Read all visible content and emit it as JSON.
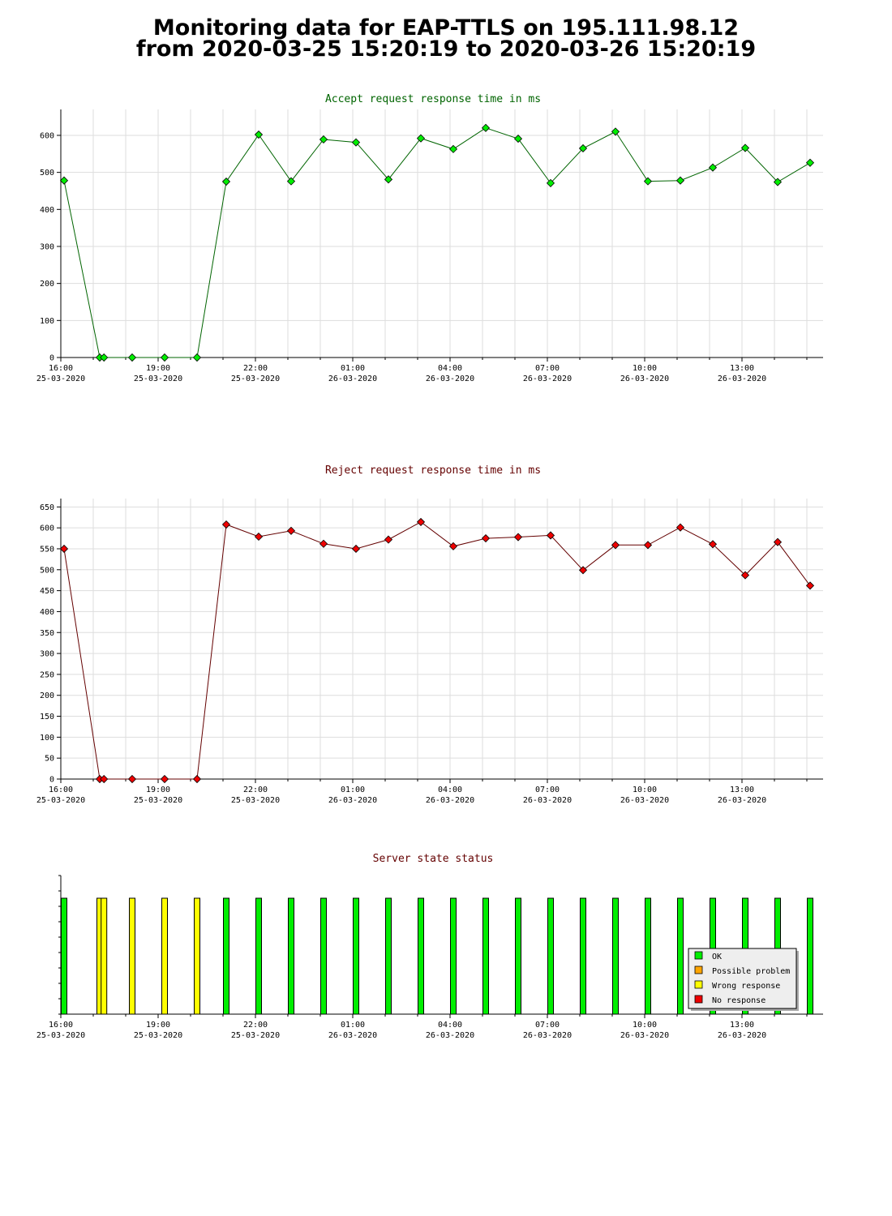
{
  "page": {
    "title_line1": "Monitoring data for EAP-TTLS on 195.111.98.12",
    "title_line2": "from 2020-03-25 15:20:19 to 2020-03-26 15:20:19"
  },
  "colors": {
    "accept_line": "#006400",
    "accept_point": "#00ee00",
    "reject_line": "#640000",
    "reject_point": "#ee0000",
    "accept_title": "#006400",
    "reject_title": "#640000",
    "status_title": "#640000",
    "ok": "#00ee00",
    "possible_problem": "#ffa500",
    "wrong_response": "#ffff00",
    "no_response": "#ee0000",
    "grid": "#dddddd"
  },
  "x_axis": {
    "labels": [
      {
        "time": "16:00",
        "date": "25-03-2020"
      },
      {
        "time": "19:00",
        "date": "25-03-2020"
      },
      {
        "time": "22:00",
        "date": "25-03-2020"
      },
      {
        "time": "01:00",
        "date": "26-03-2020"
      },
      {
        "time": "04:00",
        "date": "26-03-2020"
      },
      {
        "time": "07:00",
        "date": "26-03-2020"
      },
      {
        "time": "10:00",
        "date": "26-03-2020"
      },
      {
        "time": "13:00",
        "date": "26-03-2020"
      }
    ]
  },
  "chart_data": [
    {
      "type": "line",
      "title": "Accept request response time in ms",
      "x_unit": "hours since 16:00 25-03-2020",
      "x": [
        0.1,
        1.2,
        1.33,
        2.2,
        3.2,
        4.2,
        5.1,
        6.1,
        7.1,
        8.1,
        9.1,
        10.1,
        11.1,
        12.1,
        13.1,
        14.1,
        15.1,
        16.1,
        17.1,
        18.1,
        19.1,
        20.1,
        21.1,
        22.1,
        23.1
      ],
      "y": [
        478,
        0,
        0,
        0,
        0,
        0,
        475,
        602,
        476,
        589,
        581,
        481,
        592,
        563,
        620,
        591,
        471,
        565,
        610,
        476,
        478,
        513,
        566,
        474,
        526
      ],
      "ylim": [
        0,
        670
      ],
      "yticks": [
        0,
        100,
        200,
        300,
        400,
        500,
        600
      ],
      "grid": true
    },
    {
      "type": "line",
      "title": "Reject request response time in ms",
      "x_unit": "hours since 16:00 25-03-2020",
      "x": [
        0.1,
        1.2,
        1.33,
        2.2,
        3.2,
        4.2,
        5.1,
        6.1,
        7.1,
        8.1,
        9.1,
        10.1,
        11.1,
        12.1,
        13.1,
        14.1,
        15.1,
        16.1,
        17.1,
        18.1,
        19.1,
        20.1,
        21.1,
        22.1,
        23.1
      ],
      "y": [
        550,
        0,
        0,
        0,
        0,
        0,
        608,
        579,
        593,
        562,
        550,
        572,
        614,
        556,
        575,
        578,
        582,
        499,
        559,
        559,
        601,
        561,
        487,
        566,
        462
      ],
      "ylim": [
        0,
        670
      ],
      "yticks": [
        0,
        50,
        100,
        150,
        200,
        250,
        300,
        350,
        400,
        450,
        500,
        550,
        600,
        650
      ],
      "grid": true
    },
    {
      "type": "bar",
      "title": "Server state status",
      "x_unit": "hours since 16:00 25-03-2020",
      "x": [
        0.1,
        1.2,
        1.33,
        2.2,
        3.2,
        4.2,
        5.1,
        6.1,
        7.1,
        8.1,
        9.1,
        10.1,
        11.1,
        12.1,
        13.1,
        14.1,
        15.1,
        16.1,
        17.1,
        18.1,
        19.1,
        20.1,
        21.1,
        22.1,
        23.1
      ],
      "status": [
        "OK",
        "Wrong response",
        "Wrong response",
        "Wrong response",
        "Wrong response",
        "Wrong response",
        "OK",
        "OK",
        "OK",
        "OK",
        "OK",
        "OK",
        "OK",
        "OK",
        "OK",
        "OK",
        "OK",
        "OK",
        "OK",
        "OK",
        "OK",
        "OK",
        "OK",
        "OK",
        "OK"
      ],
      "legend": [
        {
          "label": "OK",
          "color_key": "ok"
        },
        {
          "label": "Possible problem",
          "color_key": "possible_problem"
        },
        {
          "label": "Wrong response",
          "color_key": "wrong_response"
        },
        {
          "label": "No response",
          "color_key": "no_response"
        }
      ],
      "legend_position": "bottom-right"
    }
  ]
}
